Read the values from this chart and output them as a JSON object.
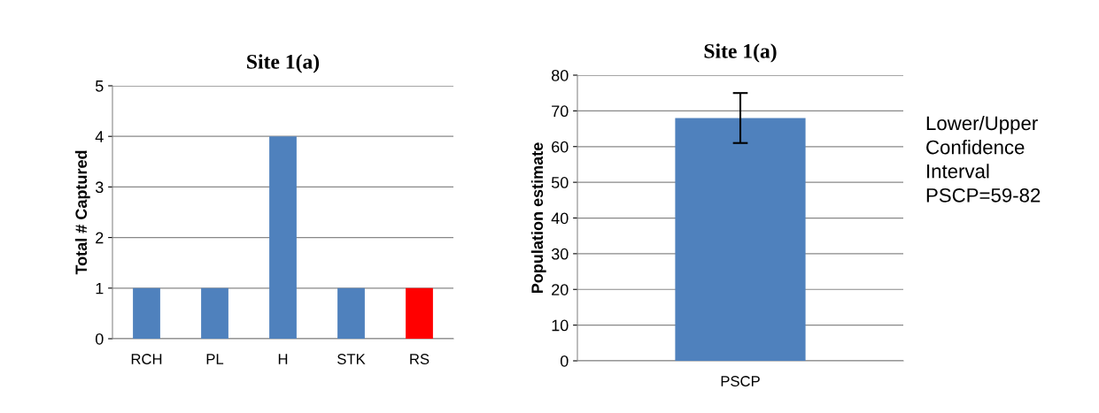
{
  "chart_data": [
    {
      "type": "bar",
      "title": "Site 1(a)",
      "ylabel": "Total # Captured",
      "categories": [
        "RCH",
        "PL",
        "H",
        "STK",
        "RS"
      ],
      "values": [
        1,
        1,
        4,
        1,
        1
      ],
      "colors": [
        "#4f81bd",
        "#4f81bd",
        "#4f81bd",
        "#4f81bd",
        "#ff0000"
      ],
      "ylim": [
        0,
        5
      ],
      "yticks": [
        0,
        1,
        2,
        3,
        4,
        5
      ],
      "grid": "y",
      "legend": false
    },
    {
      "type": "bar",
      "title": "Site 1(a)",
      "ylabel": "Population estimate",
      "categories": [
        "PSCP"
      ],
      "values": [
        68
      ],
      "errors": [
        7
      ],
      "colors": [
        "#4f81bd"
      ],
      "ylim": [
        0,
        80
      ],
      "yticks": [
        0,
        10,
        20,
        30,
        40,
        50,
        60,
        70,
        80
      ],
      "grid": "y",
      "legend": false,
      "annotations": [
        "Lower/Upper\nConfidence\nInterval\nPSCP=59-82"
      ]
    }
  ]
}
